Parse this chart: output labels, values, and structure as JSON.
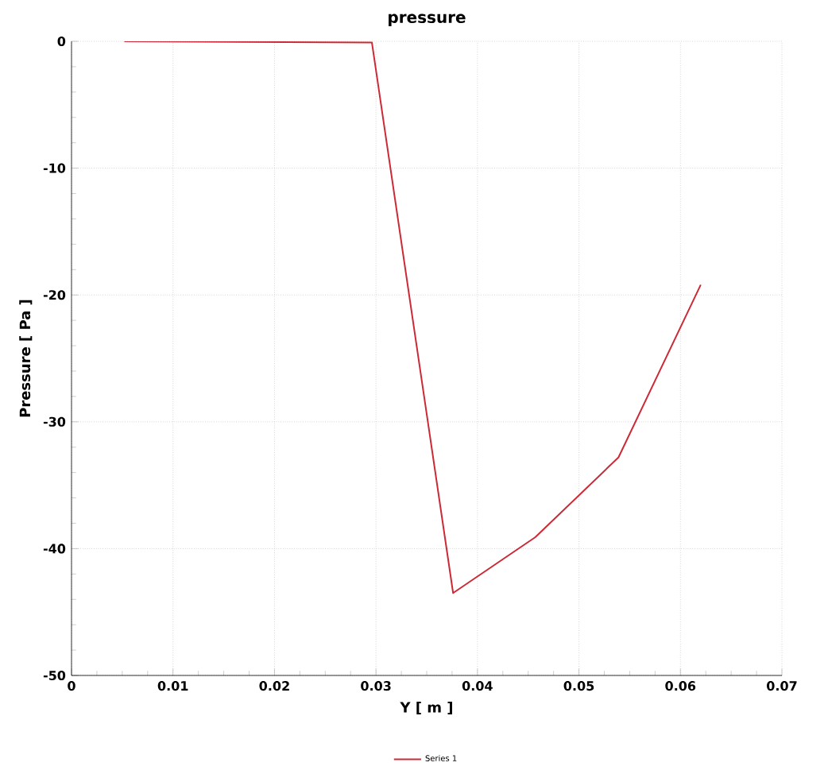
{
  "chart_data": {
    "type": "line",
    "title": "pressure",
    "xlabel": "Y [ m ]",
    "ylabel": "Pressure [ Pa ]",
    "x": [
      0.0052,
      0.0296,
      0.0376,
      0.0457,
      0.0539,
      0.062
    ],
    "series": [
      {
        "name": "Series 1",
        "color": "#cc2a36",
        "values": [
          0,
          -0.1,
          -43.5,
          -39.1,
          -32.8,
          -19.2
        ]
      }
    ],
    "xlim": [
      0,
      0.07
    ],
    "ylim": [
      -50,
      0
    ],
    "xticks": [
      0,
      0.01,
      0.02,
      0.03,
      0.04,
      0.05,
      0.06,
      0.07
    ],
    "yticks": [
      -50,
      -40,
      -30,
      -20,
      -10,
      0
    ],
    "grid": true,
    "legend": "bottom",
    "marker": "none",
    "line_style": "solid"
  }
}
